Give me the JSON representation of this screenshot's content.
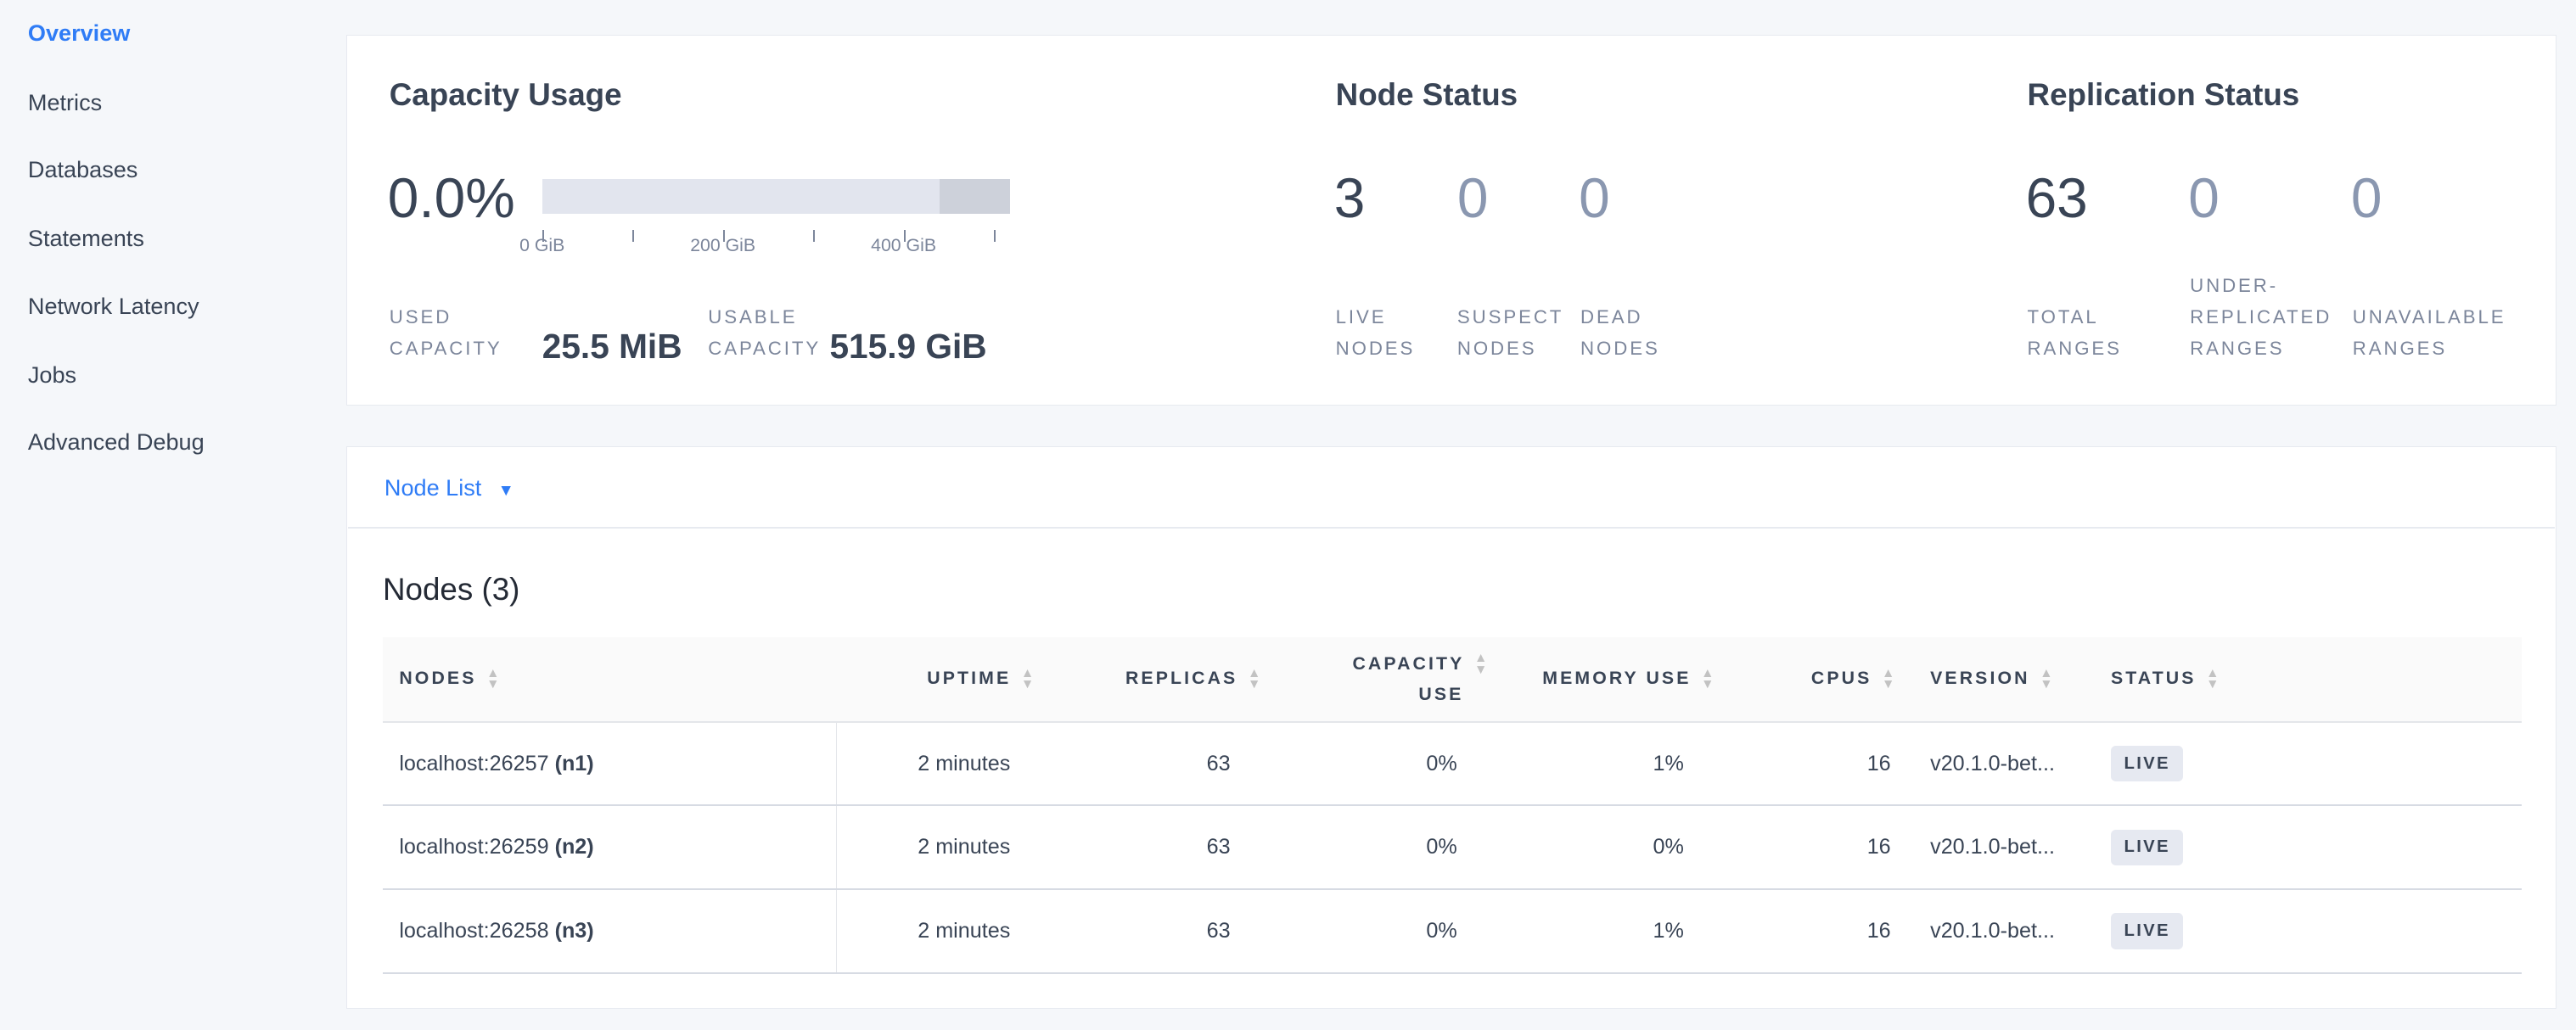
{
  "sidebar": {
    "items": [
      {
        "label": "Overview",
        "active": true
      },
      {
        "label": "Metrics"
      },
      {
        "label": "Databases"
      },
      {
        "label": "Statements"
      },
      {
        "label": "Network Latency"
      },
      {
        "label": "Jobs"
      },
      {
        "label": "Advanced Debug"
      }
    ]
  },
  "capacity": {
    "title": "Capacity Usage",
    "percent": "0.0%",
    "bar": {
      "used_fraction": 0.0,
      "usable_gib": 515.9,
      "max_tick_gib": 500,
      "ticks": [
        "0 GiB",
        "200 GiB",
        "400 GiB"
      ]
    },
    "used_label_1": "USED",
    "used_label_2": "CAPACITY",
    "used_value": "25.5 MiB",
    "usable_label_1": "USABLE",
    "usable_label_2": "CAPACITY",
    "usable_value": "515.9 GiB"
  },
  "node_status": {
    "title": "Node Status",
    "live": {
      "value": "3",
      "l1": "LIVE",
      "l2": "NODES"
    },
    "suspect": {
      "value": "0",
      "l1": "SUSPECT",
      "l2": "NODES"
    },
    "dead": {
      "value": "0",
      "l1": "DEAD",
      "l2": "NODES"
    }
  },
  "replication": {
    "title": "Replication Status",
    "total": {
      "value": "63",
      "l1": "TOTAL",
      "l2": "RANGES"
    },
    "under": {
      "value": "0",
      "l0": "UNDER-",
      "l1": "REPLICATED",
      "l2": "RANGES"
    },
    "unavailable": {
      "value": "0",
      "l1": "UNAVAILABLE",
      "l2": "RANGES"
    }
  },
  "node_list": {
    "dropdown_label": "Node List",
    "heading": "Nodes (3)",
    "columns": [
      "NODES",
      "UPTIME",
      "REPLICAS",
      "CAPACITY",
      "USE",
      "MEMORY USE",
      "CPUS",
      "VERSION",
      "STATUS"
    ],
    "rows": [
      {
        "address": "localhost:26257",
        "id": "(n1)",
        "uptime": "2 minutes",
        "replicas": "63",
        "capacity": "0%",
        "memory": "1%",
        "cpus": "16",
        "version": "v20.1.0-bet...",
        "status": "LIVE"
      },
      {
        "address": "localhost:26259",
        "id": "(n2)",
        "uptime": "2 minutes",
        "replicas": "63",
        "capacity": "0%",
        "memory": "0%",
        "cpus": "16",
        "version": "v20.1.0-bet...",
        "status": "LIVE"
      },
      {
        "address": "localhost:26258",
        "id": "(n3)",
        "uptime": "2 minutes",
        "replicas": "63",
        "capacity": "0%",
        "memory": "1%",
        "cpus": "16",
        "version": "v20.1.0-bet...",
        "status": "LIVE"
      }
    ]
  },
  "colors": {
    "accent": "#2f7cf6",
    "text": "#394455",
    "muted": "#7c869b"
  }
}
